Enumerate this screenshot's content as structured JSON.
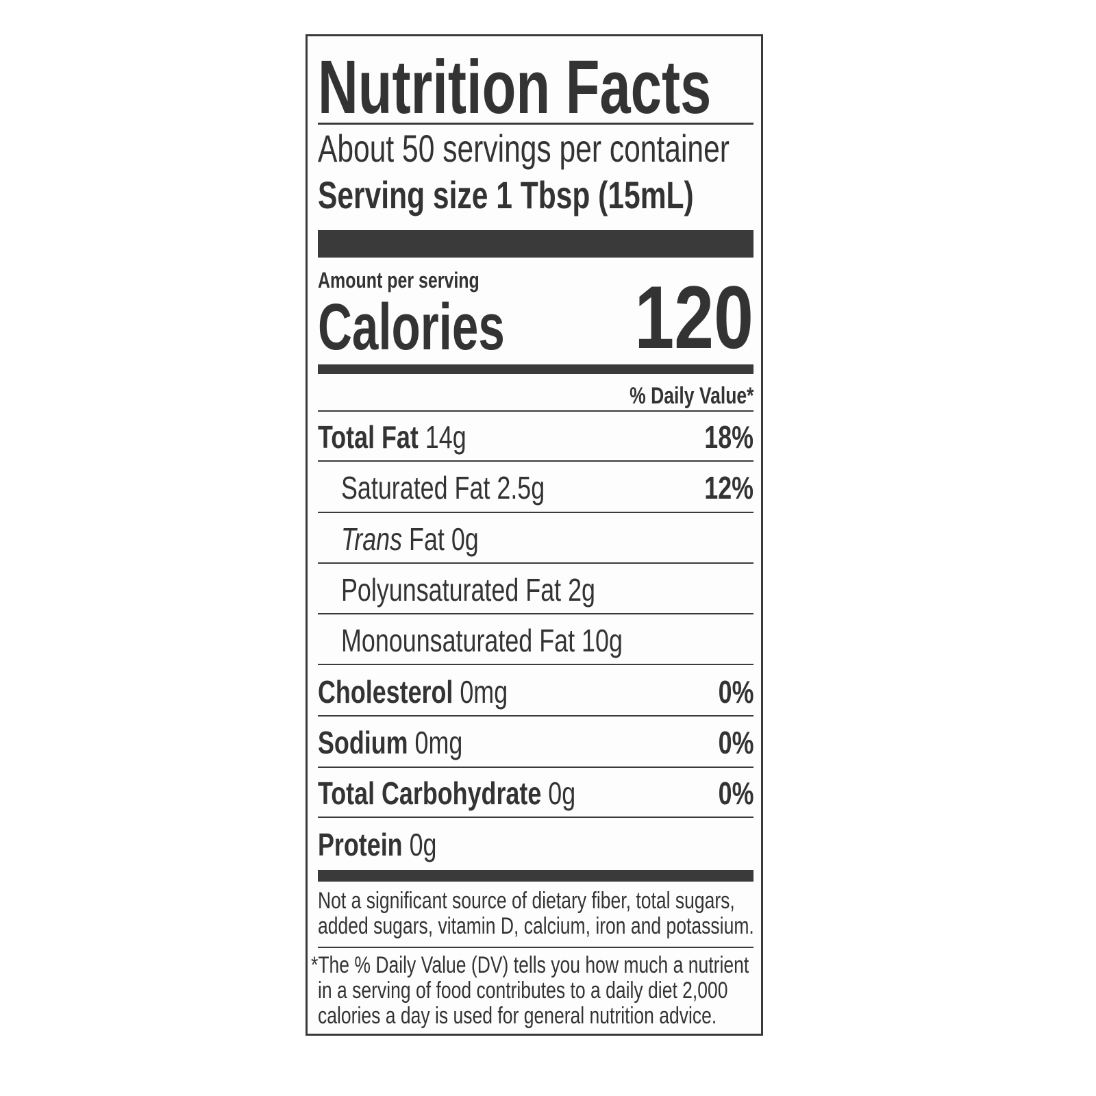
{
  "label": {
    "title": "Nutrition Facts",
    "servings_per_container": "About 50 servings per container",
    "serving_size_label": "Serving size",
    "serving_size_value": "1 Tbsp (15mL)",
    "amount_per_serving": "Amount per serving",
    "calories_label": "Calories",
    "calories_value": "120",
    "daily_value_header": "% Daily Value*",
    "nutrients": [
      {
        "name": "Total Fat",
        "amount": "14g",
        "dv": "18%"
      },
      {
        "name": "Saturated Fat",
        "amount": "2.5g",
        "dv": "12%"
      },
      {
        "name": "Trans",
        "name_suffix": "Fat",
        "amount": "0g"
      },
      {
        "name": "Polyunsaturated Fat",
        "amount": "2g"
      },
      {
        "name": "Monounsaturated Fat",
        "amount": "10g"
      },
      {
        "name": "Cholesterol",
        "amount": "0mg",
        "dv": "0%"
      },
      {
        "name": "Sodium",
        "amount": "0mg",
        "dv": "0%"
      },
      {
        "name": "Total Carbohydrate",
        "amount": "0g",
        "dv": "0%"
      },
      {
        "name": "Protein",
        "amount": "0g"
      }
    ],
    "not_significant": [
      "Not a significant source of dietary fiber, total sugars,",
      "added sugars, vitamin D, calcium, iron and potassium."
    ],
    "footnote": [
      "*The % Daily Value (DV) tells you how much a nutrient",
      "in a serving of food contributes to a daily diet 2,000",
      "calories a day is used for general nutrition advice."
    ]
  }
}
